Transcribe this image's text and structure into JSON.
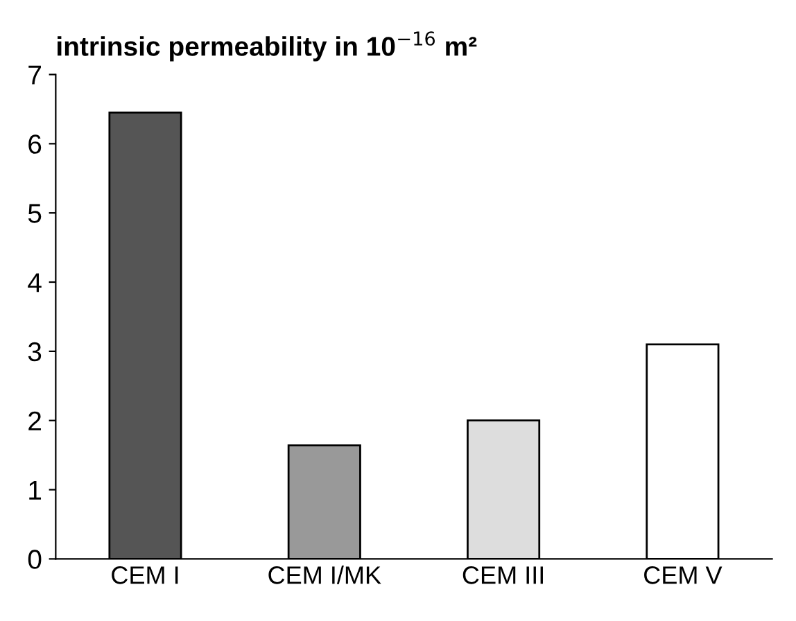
{
  "chart_data": {
    "type": "bar",
    "title": "intrinsic permeability in 10$^{−16}$ m²",
    "categories": [
      "CEM I",
      "CEM I/MK",
      "CEM III",
      "CEM V"
    ],
    "values": [
      6.45,
      1.64,
      2.0,
      3.1
    ],
    "colors": [
      "#555555",
      "#999999",
      "#dddddd",
      "#ffffff"
    ],
    "ylim": [
      0,
      7
    ],
    "yticks": [
      0,
      1,
      2,
      3,
      4,
      5,
      6,
      7
    ],
    "grid": false
  }
}
